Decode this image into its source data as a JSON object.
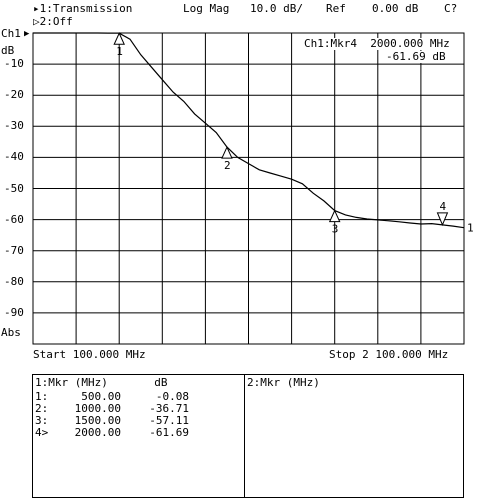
{
  "header": {
    "trace1": "▸1:Transmission",
    "trace2": "▷2:Off",
    "format": "Log Mag",
    "scale": "10.0 dB/",
    "ref": "Ref",
    "ref_value": "0.00 dB",
    "cal": "C?"
  },
  "channel": {
    "label": "Ch1",
    "unit": "dB",
    "ref_arrow": "▶"
  },
  "marker_readout": {
    "line1": "Ch1:Mkr4  2000.000 MHz",
    "line2": "-61.69 dB"
  },
  "footer": {
    "start": "Start 100.000 MHz",
    "stop": "Stop 2 100.000 MHz"
  },
  "abs_label": "Abs",
  "table": {
    "left_header": "1:Mkr (MHz)       dB",
    "right_header": "2:Mkr (MHz)",
    "rows": [
      {
        "id": "1:",
        "freq": "500.00",
        "db": "-0.08"
      },
      {
        "id": "2:",
        "freq": "1000.00",
        "db": "-36.71"
      },
      {
        "id": "3:",
        "freq": "1500.00",
        "db": "-57.11"
      },
      {
        "id": "4>",
        "freq": "2000.00",
        "db": "-61.69"
      }
    ]
  },
  "chart_data": {
    "type": "line",
    "xlim": [
      100,
      2100
    ],
    "ylim": [
      -100,
      0
    ],
    "grid": true,
    "yticks": [
      -10,
      -20,
      -30,
      -40,
      -50,
      -60,
      -70,
      -80,
      -90
    ],
    "series": [
      {
        "x": [
          100,
          200,
          300,
          400,
          450,
          500,
          550,
          600,
          650,
          700,
          750,
          800,
          850,
          900,
          950,
          1000,
          1050,
          1100,
          1150,
          1200,
          1250,
          1300,
          1350,
          1400,
          1450,
          1500,
          1550,
          1600,
          1650,
          1700,
          1750,
          1800,
          1850,
          1900,
          1950,
          2000,
          2050,
          2100
        ],
        "y": [
          0,
          0,
          0,
          0,
          -0.02,
          -0.08,
          -2,
          -7,
          -11,
          -15,
          -19,
          -22,
          -26,
          -29,
          -32,
          -36.7,
          -40,
          -42,
          -44,
          -45,
          -46,
          -47,
          -48.5,
          -51.5,
          -54,
          -57.1,
          -58.5,
          -59.3,
          -59.8,
          -60.1,
          -60.4,
          -60.7,
          -61.1,
          -61.4,
          -61.3,
          -61.7,
          -62.1,
          -62.6
        ]
      }
    ],
    "markers": [
      {
        "label": "1",
        "x": 500,
        "y": -0.08
      },
      {
        "label": "2",
        "x": 1000,
        "y": -36.71
      },
      {
        "label": "3",
        "x": 1500,
        "y": -57.11
      },
      {
        "label": "4",
        "x": 2000,
        "y": -61.69
      }
    ],
    "trace_end_label": "1"
  }
}
